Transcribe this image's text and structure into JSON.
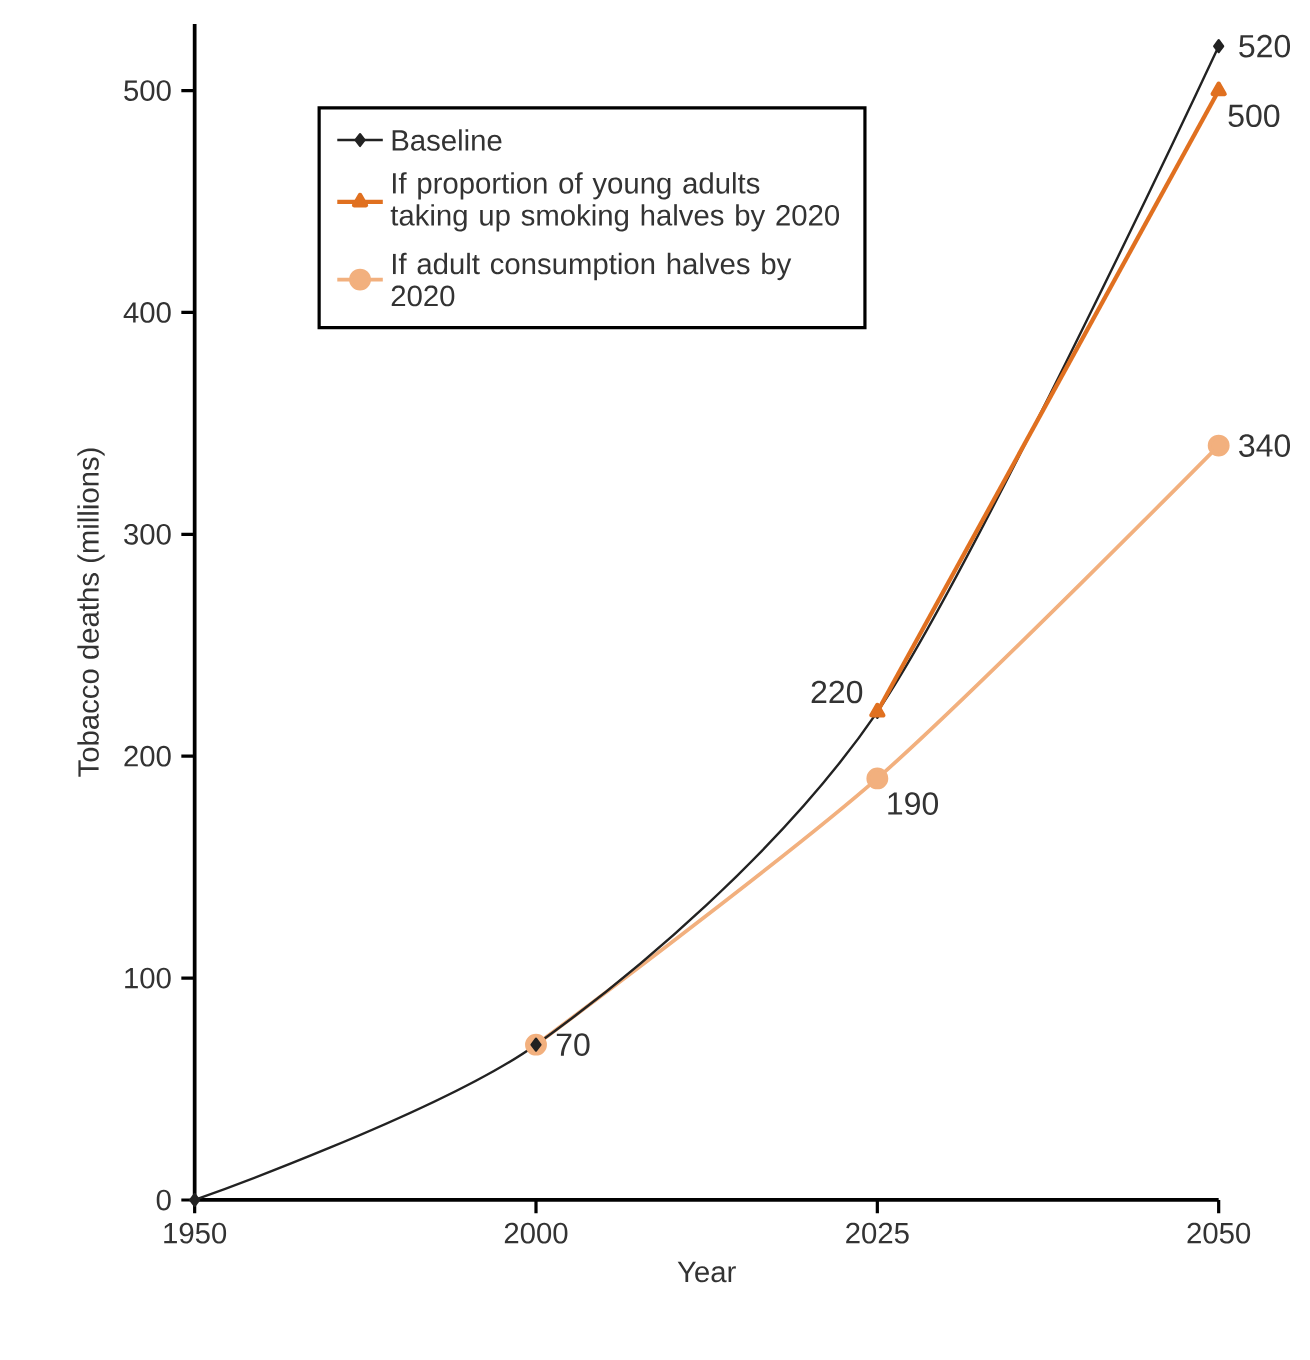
{
  "chart_data": {
    "type": "line",
    "xlabel": "Year",
    "ylabel": "Tobacco deaths (millions)",
    "categories": [
      "1950",
      "2000",
      "2025",
      "2050"
    ],
    "ylim": [
      0,
      530
    ],
    "yticks": [
      0,
      100,
      200,
      300,
      400,
      500
    ],
    "legend": "top left",
    "grid": false,
    "series": [
      {
        "name": "Baseline",
        "color": "#222222",
        "marker": "diamond",
        "values": [
          0,
          70,
          220,
          520
        ],
        "value_labels": [
          null,
          "70",
          "220",
          "520"
        ]
      },
      {
        "name": "If proportion of young adults taking up smoking halves by 2020",
        "color": "#e07020",
        "marker": "triangle",
        "values": [
          null,
          null,
          220,
          500
        ],
        "value_labels": [
          null,
          null,
          null,
          "500"
        ]
      },
      {
        "name": "If adult consumption halves by 2020",
        "color": "#f2b07e",
        "marker": "circle",
        "values": [
          null,
          70,
          190,
          340
        ],
        "value_labels": [
          null,
          null,
          "190",
          "340"
        ]
      }
    ]
  }
}
